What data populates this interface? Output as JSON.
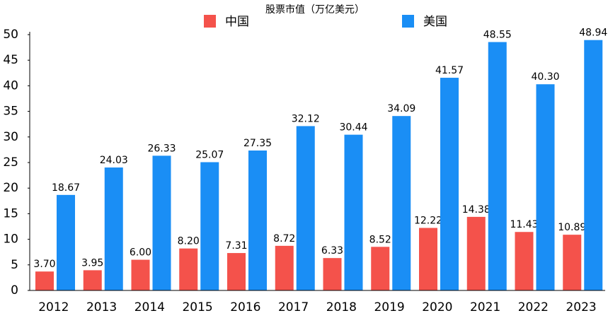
{
  "chart_data": {
    "type": "bar",
    "title": "股票市值（万亿美元）",
    "categories": [
      "2012",
      "2013",
      "2014",
      "2015",
      "2016",
      "2017",
      "2018",
      "2019",
      "2020",
      "2021",
      "2022",
      "2023"
    ],
    "series": [
      {
        "name": "中国",
        "color": "#f4524b",
        "values": [
          3.7,
          3.95,
          6.0,
          8.2,
          7.31,
          8.72,
          6.33,
          8.52,
          12.22,
          14.38,
          11.43,
          10.89
        ],
        "value_labels": [
          "3.70",
          "3.95",
          "6.00",
          "8.20",
          "7.31",
          "8.72",
          "6.33",
          "8.52",
          "12.22",
          "14.38",
          "11.43",
          "10.89"
        ]
      },
      {
        "name": "美国",
        "color": "#1a8ef5",
        "values": [
          18.67,
          24.03,
          26.33,
          25.07,
          27.35,
          32.12,
          30.44,
          34.09,
          41.57,
          48.55,
          40.3,
          48.94
        ],
        "value_labels": [
          "18.67",
          "24.03",
          "26.33",
          "25.07",
          "27.35",
          "32.12",
          "30.44",
          "34.09",
          "41.57",
          "48.55",
          "40.30",
          "48.94"
        ]
      }
    ],
    "ylim": [
      0,
      50
    ],
    "yticks": [
      0,
      5,
      10,
      15,
      20,
      25,
      30,
      35,
      40,
      45,
      50
    ],
    "grid": false
  }
}
